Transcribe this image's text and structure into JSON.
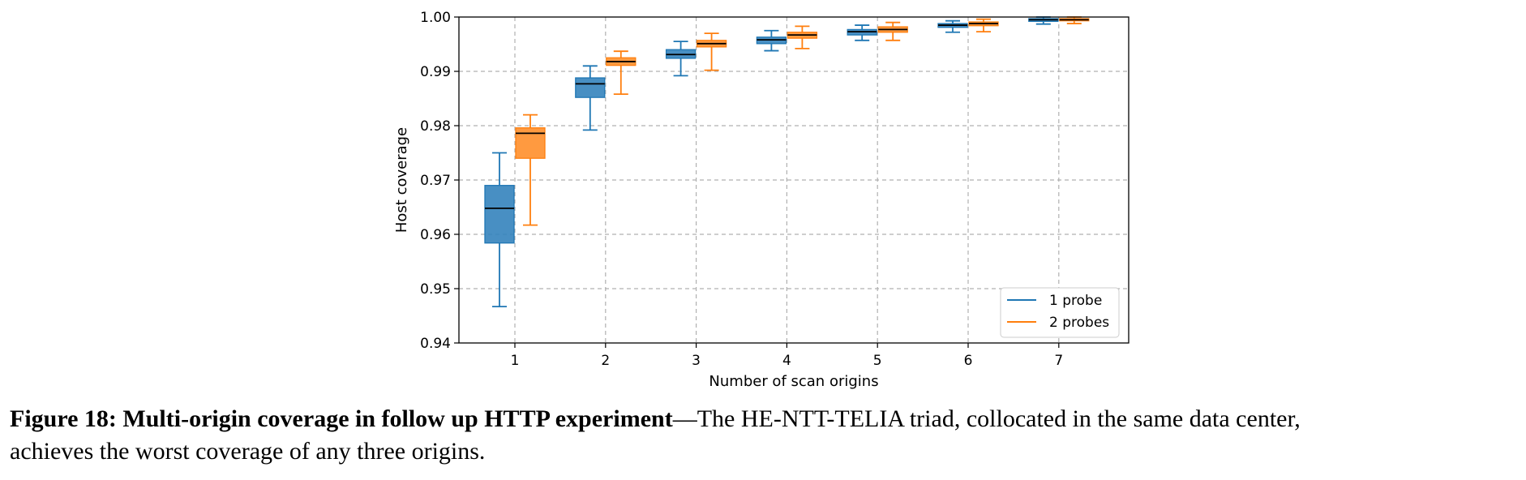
{
  "chart_data": {
    "type": "box",
    "xlabel": "Number of scan origins",
    "ylabel": "Host coverage",
    "categories": [
      "1",
      "2",
      "3",
      "4",
      "5",
      "6",
      "7"
    ],
    "ylim": [
      0.94,
      1.0
    ],
    "yticks": [
      "0.94",
      "0.95",
      "0.96",
      "0.97",
      "0.98",
      "0.99",
      "1.00"
    ],
    "grid": true,
    "legend_position": "lower-right",
    "series": [
      {
        "name": "1 probe",
        "color": "#1f77b4",
        "fill": "#2f7fbb",
        "boxes": [
          {
            "whislo": 0.9467,
            "q1": 0.9584,
            "med": 0.9648,
            "q3": 0.969,
            "whishi": 0.975
          },
          {
            "whislo": 0.9792,
            "q1": 0.9852,
            "med": 0.9877,
            "q3": 0.9888,
            "whishi": 0.991
          },
          {
            "whislo": 0.9892,
            "q1": 0.9924,
            "med": 0.9931,
            "q3": 0.994,
            "whishi": 0.9955
          },
          {
            "whislo": 0.9938,
            "q1": 0.9951,
            "med": 0.9958,
            "q3": 0.9963,
            "whishi": 0.9975
          },
          {
            "whislo": 0.9957,
            "q1": 0.9967,
            "med": 0.9973,
            "q3": 0.9977,
            "whishi": 0.9985
          },
          {
            "whislo": 0.9972,
            "q1": 0.9981,
            "med": 0.9985,
            "q3": 0.9988,
            "whishi": 0.9993
          },
          {
            "whislo": 0.9987,
            "q1": 0.9992,
            "med": 0.9995,
            "q3": 0.9997,
            "whishi": 1.0
          }
        ]
      },
      {
        "name": "2 probes",
        "color": "#ff7f0e",
        "fill": "#ff8c26",
        "boxes": [
          {
            "whislo": 0.9617,
            "q1": 0.974,
            "med": 0.9786,
            "q3": 0.9796,
            "whishi": 0.982
          },
          {
            "whislo": 0.9858,
            "q1": 0.9911,
            "med": 0.9918,
            "q3": 0.9925,
            "whishi": 0.9937
          },
          {
            "whislo": 0.9902,
            "q1": 0.9945,
            "med": 0.9951,
            "q3": 0.9957,
            "whishi": 0.997
          },
          {
            "whislo": 0.9942,
            "q1": 0.9961,
            "med": 0.9967,
            "q3": 0.9972,
            "whishi": 0.9983
          },
          {
            "whislo": 0.9957,
            "q1": 0.9972,
            "med": 0.9977,
            "q3": 0.9982,
            "whishi": 0.999
          },
          {
            "whislo": 0.9973,
            "q1": 0.9984,
            "med": 0.9988,
            "q3": 0.9991,
            "whishi": 0.9996
          },
          {
            "whislo": 0.9988,
            "q1": 0.9993,
            "med": 0.9995,
            "q3": 0.9997,
            "whishi": 1.0
          }
        ]
      }
    ]
  },
  "caption": {
    "lead": "Figure 18: Multi-origin coverage in follow up HTTP experiment",
    "dash": "—",
    "text_line1": "The HE-NTT-TELIA triad, collocated in the same data center,",
    "text_line2": "achieves the worst coverage of any three origins."
  }
}
